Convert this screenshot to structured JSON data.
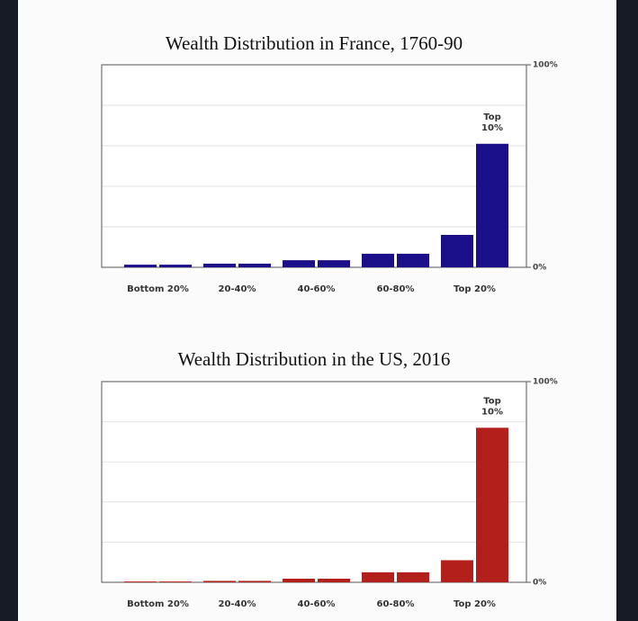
{
  "chart_data": [
    {
      "type": "bar",
      "title": "Wealth Distribution in France, 1760-90",
      "categories": [
        "Bottom 20%",
        null,
        "20-40%",
        null,
        "40-60%",
        null,
        "60-80%",
        null,
        "Top 20%",
        null
      ],
      "values": [
        1.3,
        1.3,
        1.8,
        1.8,
        3.5,
        3.5,
        6.7,
        6.7,
        16,
        61
      ],
      "color": "#1c0f8a",
      "ylim": [
        0,
        100
      ],
      "yticks": [
        {
          "value": 0,
          "label": "0%"
        },
        {
          "value": 100,
          "label": "100%"
        }
      ],
      "grid_values": [
        20,
        40,
        60,
        80
      ],
      "annotation": "Top 10%"
    },
    {
      "type": "bar",
      "title": "Wealth Distribution in the US, 2016",
      "categories": [
        "Bottom 20%",
        null,
        "20-40%",
        null,
        "40-60%",
        null,
        "60-80%",
        null,
        "Top 20%",
        null
      ],
      "values": [
        0.4,
        0.4,
        0.7,
        0.7,
        1.8,
        1.8,
        5,
        5,
        11,
        77
      ],
      "color": "#b3201c",
      "ylim": [
        0,
        100
      ],
      "yticks": [
        {
          "value": 0,
          "label": "0%"
        },
        {
          "value": 100,
          "label": "100%"
        }
      ],
      "grid_values": [
        20,
        40,
        60,
        80
      ],
      "annotation": "Top 10%"
    }
  ]
}
